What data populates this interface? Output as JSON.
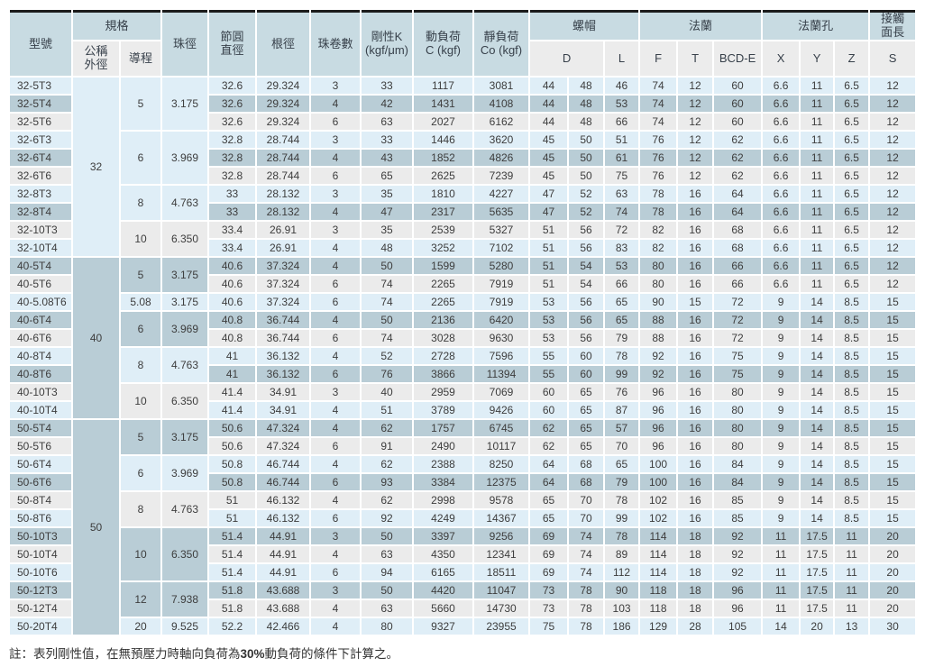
{
  "table": {
    "headers": {
      "model": "型號",
      "spec": "規格",
      "outer": "公稱\n外徑",
      "lead": "導程",
      "ball": "珠徑",
      "pcd": "節圓\n直徑",
      "root": "根徑",
      "circuits": "珠卷數",
      "rigidity": "剛性K\n(kgf/μm)",
      "dynamic_load": "動負荷\nC (kgf)",
      "static_load": "靜負荷\nCo (kgf)",
      "nut": "螺帽",
      "nut_d": "D",
      "nut_l": "L",
      "flange": "法蘭",
      "flange_f": "F",
      "flange_t": "T",
      "flange_bcd": "BCD-E",
      "holes": "法蘭孔",
      "hole_x": "X",
      "hole_y": "Y",
      "hole_z": "Z",
      "contact": "接觸\n面長",
      "contact_s": "S"
    },
    "colors": {
      "header_blue": "#c8dbe2",
      "subheader_gray": "#ececec",
      "row_light_blue": "#dfeef7",
      "row_medium_blue": "#b9cdd6",
      "row_gray": "#ebebeb",
      "top_bar": "#1b1b1b"
    },
    "rows": [
      {
        "model": "32-5T3",
        "outer": {
          "label": "32",
          "span": 10
        },
        "group": {
          "lead": "5",
          "ball": "3.175",
          "span": 3
        },
        "values": [
          "32.6",
          "29.324",
          "3",
          "33",
          "1117",
          "3081",
          "44",
          "48",
          "46",
          "74",
          "12",
          "60",
          "6.6",
          "11",
          "6.5",
          "12"
        ]
      },
      {
        "model": "32-5T4",
        "values": [
          "32.6",
          "29.324",
          "4",
          "42",
          "1431",
          "4108",
          "44",
          "48",
          "53",
          "74",
          "12",
          "60",
          "6.6",
          "11",
          "6.5",
          "12"
        ]
      },
      {
        "model": "32-5T6",
        "values": [
          "32.6",
          "29.324",
          "6",
          "63",
          "2027",
          "6162",
          "44",
          "48",
          "66",
          "74",
          "12",
          "60",
          "6.6",
          "11",
          "6.5",
          "12"
        ]
      },
      {
        "model": "32-6T3",
        "group": {
          "lead": "6",
          "ball": "3.969",
          "span": 3
        },
        "values": [
          "32.8",
          "28.744",
          "3",
          "33",
          "1446",
          "3620",
          "45",
          "50",
          "51",
          "76",
          "12",
          "62",
          "6.6",
          "11",
          "6.5",
          "12"
        ]
      },
      {
        "model": "32-6T4",
        "values": [
          "32.8",
          "28.744",
          "4",
          "43",
          "1852",
          "4826",
          "45",
          "50",
          "61",
          "76",
          "12",
          "62",
          "6.6",
          "11",
          "6.5",
          "12"
        ]
      },
      {
        "model": "32-6T6",
        "values": [
          "32.8",
          "28.744",
          "6",
          "65",
          "2625",
          "7239",
          "45",
          "50",
          "75",
          "76",
          "12",
          "62",
          "6.6",
          "11",
          "6.5",
          "12"
        ]
      },
      {
        "model": "32-8T3",
        "group": {
          "lead": "8",
          "ball": "4.763",
          "span": 2
        },
        "values": [
          "33",
          "28.132",
          "3",
          "35",
          "1810",
          "4227",
          "47",
          "52",
          "63",
          "78",
          "16",
          "64",
          "6.6",
          "11",
          "6.5",
          "12"
        ]
      },
      {
        "model": "32-8T4",
        "values": [
          "33",
          "28.132",
          "4",
          "47",
          "2317",
          "5635",
          "47",
          "52",
          "74",
          "78",
          "16",
          "64",
          "6.6",
          "11",
          "6.5",
          "12"
        ]
      },
      {
        "model": "32-10T3",
        "group": {
          "lead": "10",
          "ball": "6.350",
          "span": 2
        },
        "values": [
          "33.4",
          "26.91",
          "3",
          "35",
          "2539",
          "5327",
          "51",
          "56",
          "72",
          "82",
          "16",
          "68",
          "6.6",
          "11",
          "6.5",
          "12"
        ]
      },
      {
        "model": "32-10T4",
        "values": [
          "33.4",
          "26.91",
          "4",
          "48",
          "3252",
          "7102",
          "51",
          "56",
          "83",
          "82",
          "16",
          "68",
          "6.6",
          "11",
          "6.5",
          "12"
        ]
      },
      {
        "model": "40-5T4",
        "outer": {
          "label": "40",
          "span": 9
        },
        "group": {
          "lead": "5",
          "ball": "3.175",
          "span": 2
        },
        "values": [
          "40.6",
          "37.324",
          "4",
          "50",
          "1599",
          "5280",
          "51",
          "54",
          "53",
          "80",
          "16",
          "66",
          "6.6",
          "11",
          "6.5",
          "12"
        ]
      },
      {
        "model": "40-5T6",
        "values": [
          "40.6",
          "37.324",
          "6",
          "74",
          "2265",
          "7919",
          "51",
          "54",
          "66",
          "80",
          "16",
          "66",
          "6.6",
          "11",
          "6.5",
          "12"
        ]
      },
      {
        "model": "40-5.08T6",
        "group": {
          "lead": "5.08",
          "ball": "3.175",
          "span": 1
        },
        "values": [
          "40.6",
          "37.324",
          "6",
          "74",
          "2265",
          "7919",
          "53",
          "56",
          "65",
          "90",
          "15",
          "72",
          "9",
          "14",
          "8.5",
          "15"
        ]
      },
      {
        "model": "40-6T4",
        "group": {
          "lead": "6",
          "ball": "3.969",
          "span": 2
        },
        "values": [
          "40.8",
          "36.744",
          "4",
          "50",
          "2136",
          "6420",
          "53",
          "56",
          "65",
          "88",
          "16",
          "72",
          "9",
          "14",
          "8.5",
          "15"
        ]
      },
      {
        "model": "40-6T6",
        "values": [
          "40.8",
          "36.744",
          "6",
          "74",
          "3028",
          "9630",
          "53",
          "56",
          "79",
          "88",
          "16",
          "72",
          "9",
          "14",
          "8.5",
          "15"
        ]
      },
      {
        "model": "40-8T4",
        "group": {
          "lead": "8",
          "ball": "4.763",
          "span": 2
        },
        "values": [
          "41",
          "36.132",
          "4",
          "52",
          "2728",
          "7596",
          "55",
          "60",
          "78",
          "92",
          "16",
          "75",
          "9",
          "14",
          "8.5",
          "15"
        ]
      },
      {
        "model": "40-8T6",
        "values": [
          "41",
          "36.132",
          "6",
          "76",
          "3866",
          "11394",
          "55",
          "60",
          "99",
          "92",
          "16",
          "75",
          "9",
          "14",
          "8.5",
          "15"
        ]
      },
      {
        "model": "40-10T3",
        "group": {
          "lead": "10",
          "ball": "6.350",
          "span": 2
        },
        "values": [
          "41.4",
          "34.91",
          "3",
          "40",
          "2959",
          "7069",
          "60",
          "65",
          "76",
          "96",
          "16",
          "80",
          "9",
          "14",
          "8.5",
          "15"
        ]
      },
      {
        "model": "40-10T4",
        "values": [
          "41.4",
          "34.91",
          "4",
          "51",
          "3789",
          "9426",
          "60",
          "65",
          "87",
          "96",
          "16",
          "80",
          "9",
          "14",
          "8.5",
          "15"
        ]
      },
      {
        "model": "50-5T4",
        "outer": {
          "label": "50",
          "span": 12
        },
        "group": {
          "lead": "5",
          "ball": "3.175",
          "span": 2
        },
        "values": [
          "50.6",
          "47.324",
          "4",
          "62",
          "1757",
          "6745",
          "62",
          "65",
          "57",
          "96",
          "16",
          "80",
          "9",
          "14",
          "8.5",
          "15"
        ]
      },
      {
        "model": "50-5T6",
        "values": [
          "50.6",
          "47.324",
          "6",
          "91",
          "2490",
          "10117",
          "62",
          "65",
          "70",
          "96",
          "16",
          "80",
          "9",
          "14",
          "8.5",
          "15"
        ]
      },
      {
        "model": "50-6T4",
        "group": {
          "lead": "6",
          "ball": "3.969",
          "span": 2
        },
        "values": [
          "50.8",
          "46.744",
          "4",
          "62",
          "2388",
          "8250",
          "64",
          "68",
          "65",
          "100",
          "16",
          "84",
          "9",
          "14",
          "8.5",
          "15"
        ]
      },
      {
        "model": "50-6T6",
        "values": [
          "50.8",
          "46.744",
          "6",
          "93",
          "3384",
          "12375",
          "64",
          "68",
          "79",
          "100",
          "16",
          "84",
          "9",
          "14",
          "8.5",
          "15"
        ]
      },
      {
        "model": "50-8T4",
        "group": {
          "lead": "8",
          "ball": "4.763",
          "span": 2
        },
        "values": [
          "51",
          "46.132",
          "4",
          "62",
          "2998",
          "9578",
          "65",
          "70",
          "78",
          "102",
          "16",
          "85",
          "9",
          "14",
          "8.5",
          "15"
        ]
      },
      {
        "model": "50-8T6",
        "values": [
          "51",
          "46.132",
          "6",
          "92",
          "4249",
          "14367",
          "65",
          "70",
          "99",
          "102",
          "16",
          "85",
          "9",
          "14",
          "8.5",
          "15"
        ]
      },
      {
        "model": "50-10T3",
        "group": {
          "lead": "10",
          "ball": "6.350",
          "span": 3
        },
        "values": [
          "51.4",
          "44.91",
          "3",
          "50",
          "3397",
          "9256",
          "69",
          "74",
          "78",
          "114",
          "18",
          "92",
          "11",
          "17.5",
          "11",
          "20"
        ]
      },
      {
        "model": "50-10T4",
        "values": [
          "51.4",
          "44.91",
          "4",
          "63",
          "4350",
          "12341",
          "69",
          "74",
          "89",
          "114",
          "18",
          "92",
          "11",
          "17.5",
          "11",
          "20"
        ]
      },
      {
        "model": "50-10T6",
        "values": [
          "51.4",
          "44.91",
          "6",
          "94",
          "6165",
          "18511",
          "69",
          "74",
          "112",
          "114",
          "18",
          "92",
          "11",
          "17.5",
          "11",
          "20"
        ]
      },
      {
        "model": "50-12T3",
        "group": {
          "lead": "12",
          "ball": "7.938",
          "span": 2
        },
        "values": [
          "51.8",
          "43.688",
          "3",
          "50",
          "4420",
          "11047",
          "73",
          "78",
          "90",
          "118",
          "18",
          "96",
          "11",
          "17.5",
          "11",
          "20"
        ]
      },
      {
        "model": "50-12T4",
        "values": [
          "51.8",
          "43.688",
          "4",
          "63",
          "5660",
          "14730",
          "73",
          "78",
          "103",
          "118",
          "18",
          "96",
          "11",
          "17.5",
          "11",
          "20"
        ]
      },
      {
        "model": "50-20T4",
        "group": {
          "lead": "20",
          "ball": "9.525",
          "span": 1
        },
        "values": [
          "52.2",
          "42.466",
          "4",
          "80",
          "9327",
          "23955",
          "75",
          "78",
          "186",
          "129",
          "28",
          "105",
          "14",
          "20",
          "13",
          "30"
        ]
      }
    ]
  },
  "footnote": {
    "prefix": "註：表列剛性值，在無預壓力時軸向負荷為",
    "bold": "30%",
    "suffix": "動負荷的條件下計算之。"
  }
}
